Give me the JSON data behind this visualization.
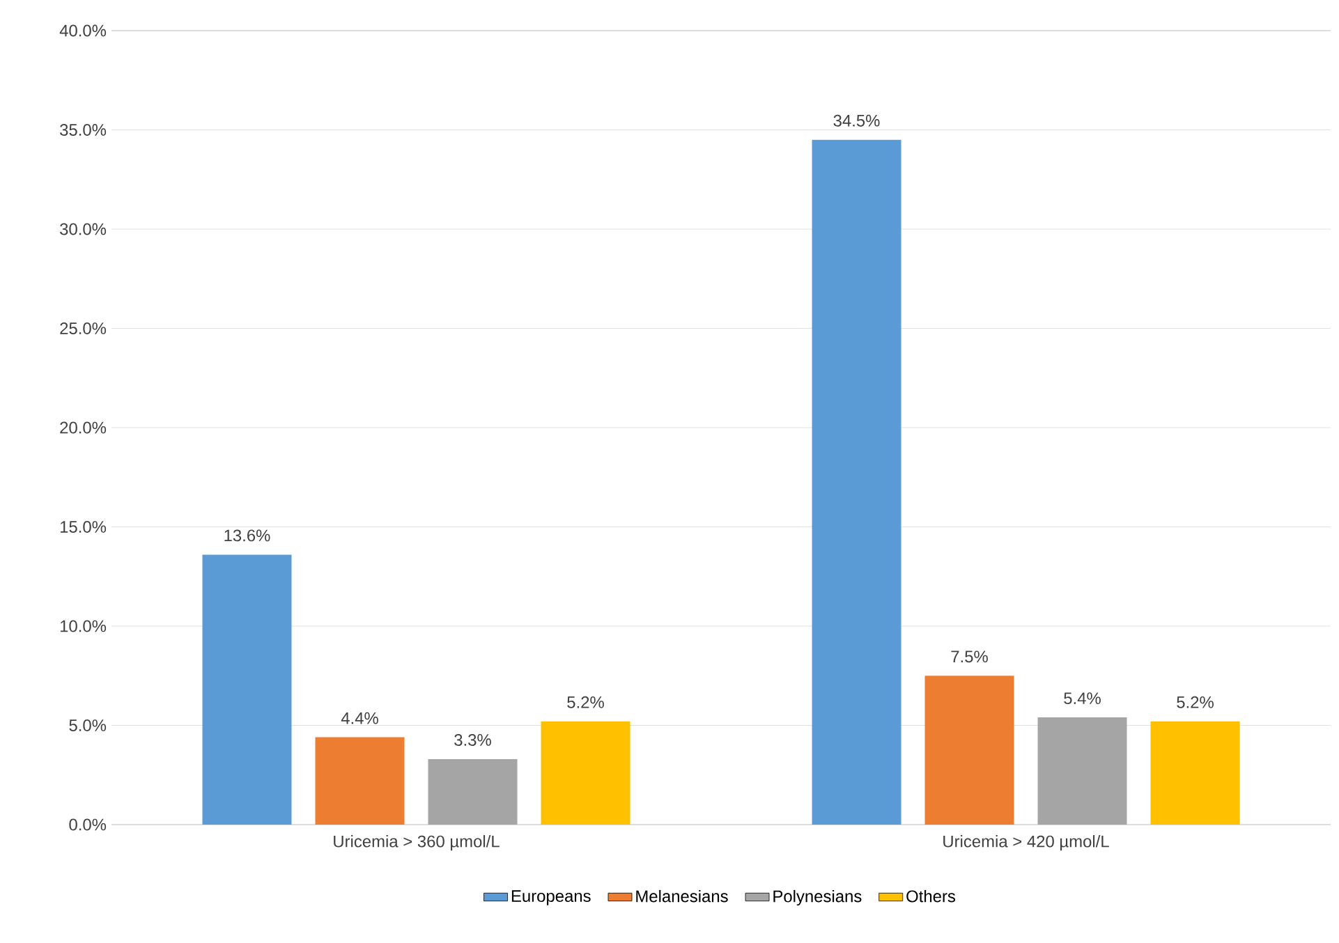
{
  "chart_data": {
    "type": "bar",
    "categories": [
      "Uricemia > 360 µmol/L",
      "Uricemia > 420 µmol/L"
    ],
    "series": [
      {
        "name": "Europeans",
        "color": "#5b9bd5",
        "values": [
          13.6,
          34.5
        ],
        "value_labels": [
          "13.6%",
          "34.5%"
        ]
      },
      {
        "name": "Melanesians",
        "color": "#ed7d31",
        "values": [
          4.4,
          7.5
        ],
        "value_labels": [
          "4.4%",
          "7.5%"
        ]
      },
      {
        "name": "Polynesians",
        "color": "#a5a5a5",
        "values": [
          3.3,
          5.4
        ],
        "value_labels": [
          "3.3%",
          "5.4%"
        ]
      },
      {
        "name": "Others",
        "color": "#ffc000",
        "values": [
          5.2,
          5.2
        ],
        "value_labels": [
          "5.2%",
          "5.2%"
        ]
      }
    ],
    "ylim": [
      0,
      40
    ],
    "yticks": [
      {
        "value": 0,
        "label": "0.0%"
      },
      {
        "value": 5,
        "label": "5.0%"
      },
      {
        "value": 10,
        "label": "10.0%"
      },
      {
        "value": 15,
        "label": "15.0%"
      },
      {
        "value": 20,
        "label": "20.0%"
      },
      {
        "value": 25,
        "label": "25.0%"
      },
      {
        "value": 30,
        "label": "30.0%"
      },
      {
        "value": 35,
        "label": "35.0%"
      },
      {
        "value": 40,
        "label": "40.0%"
      }
    ],
    "grid": "y",
    "legend": "bottom"
  }
}
